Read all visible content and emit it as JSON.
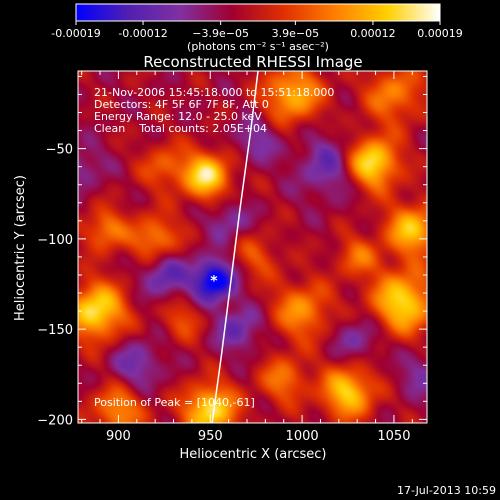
{
  "chart_data": {
    "type": "heatmap",
    "title": "Reconstructed RHESSI Image",
    "xlabel": "Heliocentric X (arcsec)",
    "ylabel": "Heliocentric Y (arcsec)",
    "xlim": [
      878,
      1068
    ],
    "ylim": [
      -202,
      -7
    ],
    "x_ticks": [
      900,
      950,
      1000,
      1050
    ],
    "y_ticks": [
      -50,
      -100,
      -150,
      -200
    ],
    "colorbar": {
      "range": [
        -0.00019,
        0.00019
      ],
      "ticks": [
        "-0.00019",
        "-0.00012",
        "−3.9e−05",
        "3.9e−05",
        "0.00012",
        "0.00019"
      ],
      "tick_values": [
        -0.00019,
        -0.00012,
        -3.9e-05,
        3.9e-05,
        0.00012,
        0.00019
      ],
      "units": "(photons cm⁻² s⁻¹ asec⁻²)",
      "colors": [
        "#0000ff",
        "#5020b0",
        "#8030a0",
        "#a00030",
        "#e03000",
        "#ff8000",
        "#ffd000",
        "#ffffff"
      ]
    },
    "annotations": [
      "21-Nov-2006 15:45:18.000 to 15:51:18.000",
      "Detectors: 4F 5F 6F 7F 8F, Att 0",
      "Energy Range: 12.0 - 25.0 keV",
      "Clean    Total counts: 2.05E+04"
    ],
    "peak_label": "Position of Peak = [1040,-61]",
    "limb_curve": [
      [
        951,
        -202
      ],
      [
        956,
        -165
      ],
      [
        961,
        -125
      ],
      [
        966,
        -85
      ],
      [
        972,
        -40
      ],
      [
        976,
        -7
      ]
    ],
    "min_marker": [
      952,
      -123
    ],
    "blobs": [
      {
        "x": 1038,
        "y": -58,
        "amp": 1.0,
        "s": 10
      },
      {
        "x": 948,
        "y": -65,
        "amp": 0.95,
        "s": 9
      },
      {
        "x": 888,
        "y": -140,
        "amp": 0.95,
        "s": 11
      },
      {
        "x": 1055,
        "y": -135,
        "amp": 0.9,
        "s": 12
      },
      {
        "x": 950,
        "y": -195,
        "amp": 0.95,
        "s": 10
      },
      {
        "x": 1025,
        "y": -185,
        "amp": 0.85,
        "s": 10
      },
      {
        "x": 1060,
        "y": -95,
        "amp": 0.8,
        "s": 10
      },
      {
        "x": 995,
        "y": -20,
        "amp": 0.75,
        "s": 11
      },
      {
        "x": 1000,
        "y": -140,
        "amp": 0.6,
        "s": 11
      },
      {
        "x": 920,
        "y": -100,
        "amp": 0.6,
        "s": 9
      },
      {
        "x": 893,
        "y": -95,
        "amp": 0.55,
        "s": 8
      },
      {
        "x": 900,
        "y": -195,
        "amp": 0.6,
        "s": 10
      },
      {
        "x": 1050,
        "y": -20,
        "amp": 0.55,
        "s": 11
      },
      {
        "x": 990,
        "y": -178,
        "amp": 0.5,
        "s": 9
      },
      {
        "x": 925,
        "y": -60,
        "amp": 0.4,
        "s": 9
      },
      {
        "x": 1030,
        "y": -110,
        "amp": 0.45,
        "s": 8
      },
      {
        "x": 935,
        "y": -145,
        "amp": 0.35,
        "s": 8
      },
      {
        "x": 975,
        "y": -110,
        "amp": 0.35,
        "s": 9
      },
      {
        "x": 952,
        "y": -123,
        "amp": -1.0,
        "s": 8
      },
      {
        "x": 925,
        "y": -120,
        "amp": -0.5,
        "s": 9
      },
      {
        "x": 965,
        "y": -150,
        "amp": -0.45,
        "s": 9
      },
      {
        "x": 1015,
        "y": -60,
        "amp": -0.45,
        "s": 12
      },
      {
        "x": 910,
        "y": -170,
        "amp": -0.4,
        "s": 10
      },
      {
        "x": 975,
        "y": -45,
        "amp": -0.35,
        "s": 9
      },
      {
        "x": 1030,
        "y": -155,
        "amp": -0.35,
        "s": 9
      },
      {
        "x": 1065,
        "y": -175,
        "amp": -0.3,
        "s": 9
      },
      {
        "x": 880,
        "y": -60,
        "amp": -0.3,
        "s": 9
      },
      {
        "x": 960,
        "y": -90,
        "amp": -0.35,
        "s": 8
      }
    ]
  },
  "footer_timestamp": "17-Jul-2013 10:59"
}
